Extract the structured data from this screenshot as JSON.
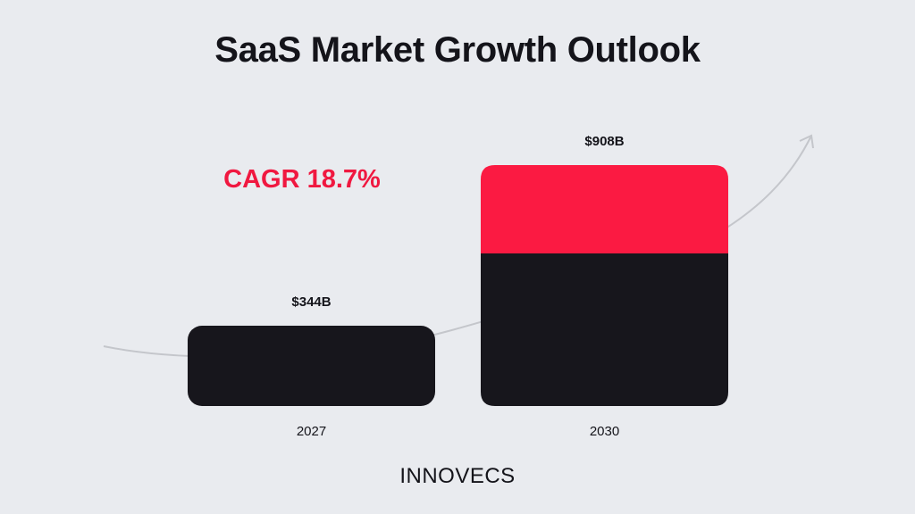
{
  "chart_data": {
    "type": "bar",
    "title": "SaaS Market Growth Outlook",
    "categories": [
      "2027",
      "2030"
    ],
    "values": [
      344,
      908
    ],
    "value_labels": [
      "$344B",
      "$908B"
    ],
    "annotation": "CAGR 18.7%",
    "highlight_base": 344,
    "colors": {
      "bar": "#17161c",
      "highlight": "#fb1a42",
      "annotation": "#f01840",
      "trend_line": "#c4c6cb",
      "background": "#e9ebef"
    },
    "grid": false,
    "legend": "none"
  },
  "brand": {
    "name": "INNOVECS"
  }
}
